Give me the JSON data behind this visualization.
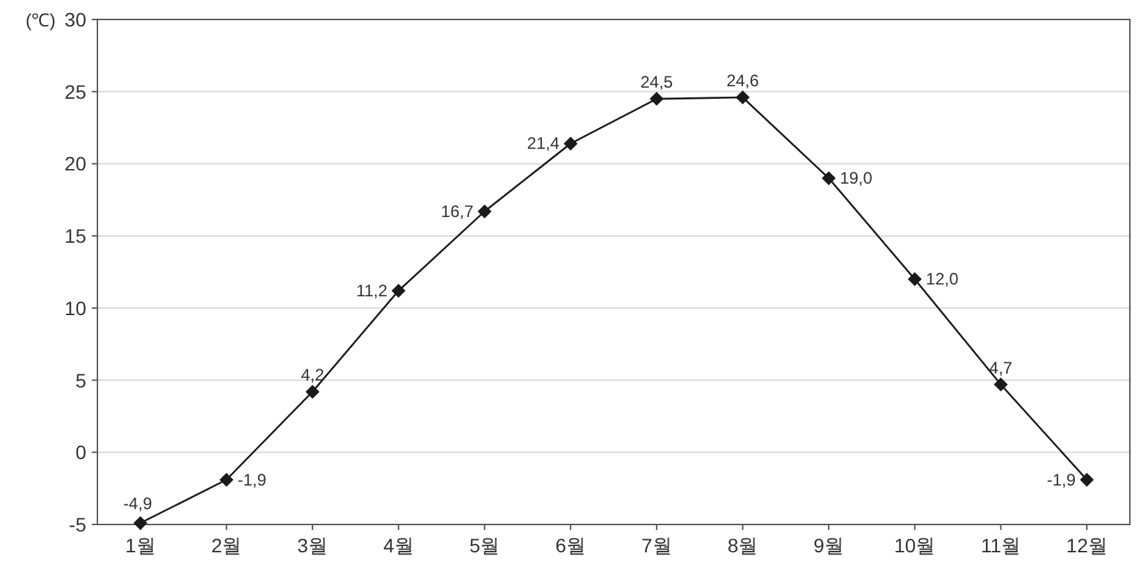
{
  "chart_data": {
    "type": "line",
    "ylabel": "(℃)",
    "categories": [
      "1월",
      "2월",
      "3월",
      "4월",
      "5월",
      "6월",
      "7월",
      "8월",
      "9월",
      "10월",
      "11월",
      "12월"
    ],
    "series": [
      {
        "color": "#1a1a1a",
        "values": [
          -4.9,
          -1.9,
          4.2,
          11.2,
          16.7,
          21.4,
          24.5,
          24.6,
          19.0,
          12.0,
          4.7,
          -1.9
        ],
        "value_labels": [
          "-4,9",
          "-1,9",
          "4,2",
          "11,2",
          "16,7",
          "21,4",
          "24,5",
          "24,6",
          "19,0",
          "12,0",
          "4,7",
          "-1,9"
        ]
      }
    ],
    "ylim": [
      -5,
      30
    ],
    "yticks": [
      -5,
      0,
      5,
      10,
      15,
      20,
      25,
      30
    ],
    "grid": "y",
    "marker": "diamond",
    "line_style": "solid"
  }
}
